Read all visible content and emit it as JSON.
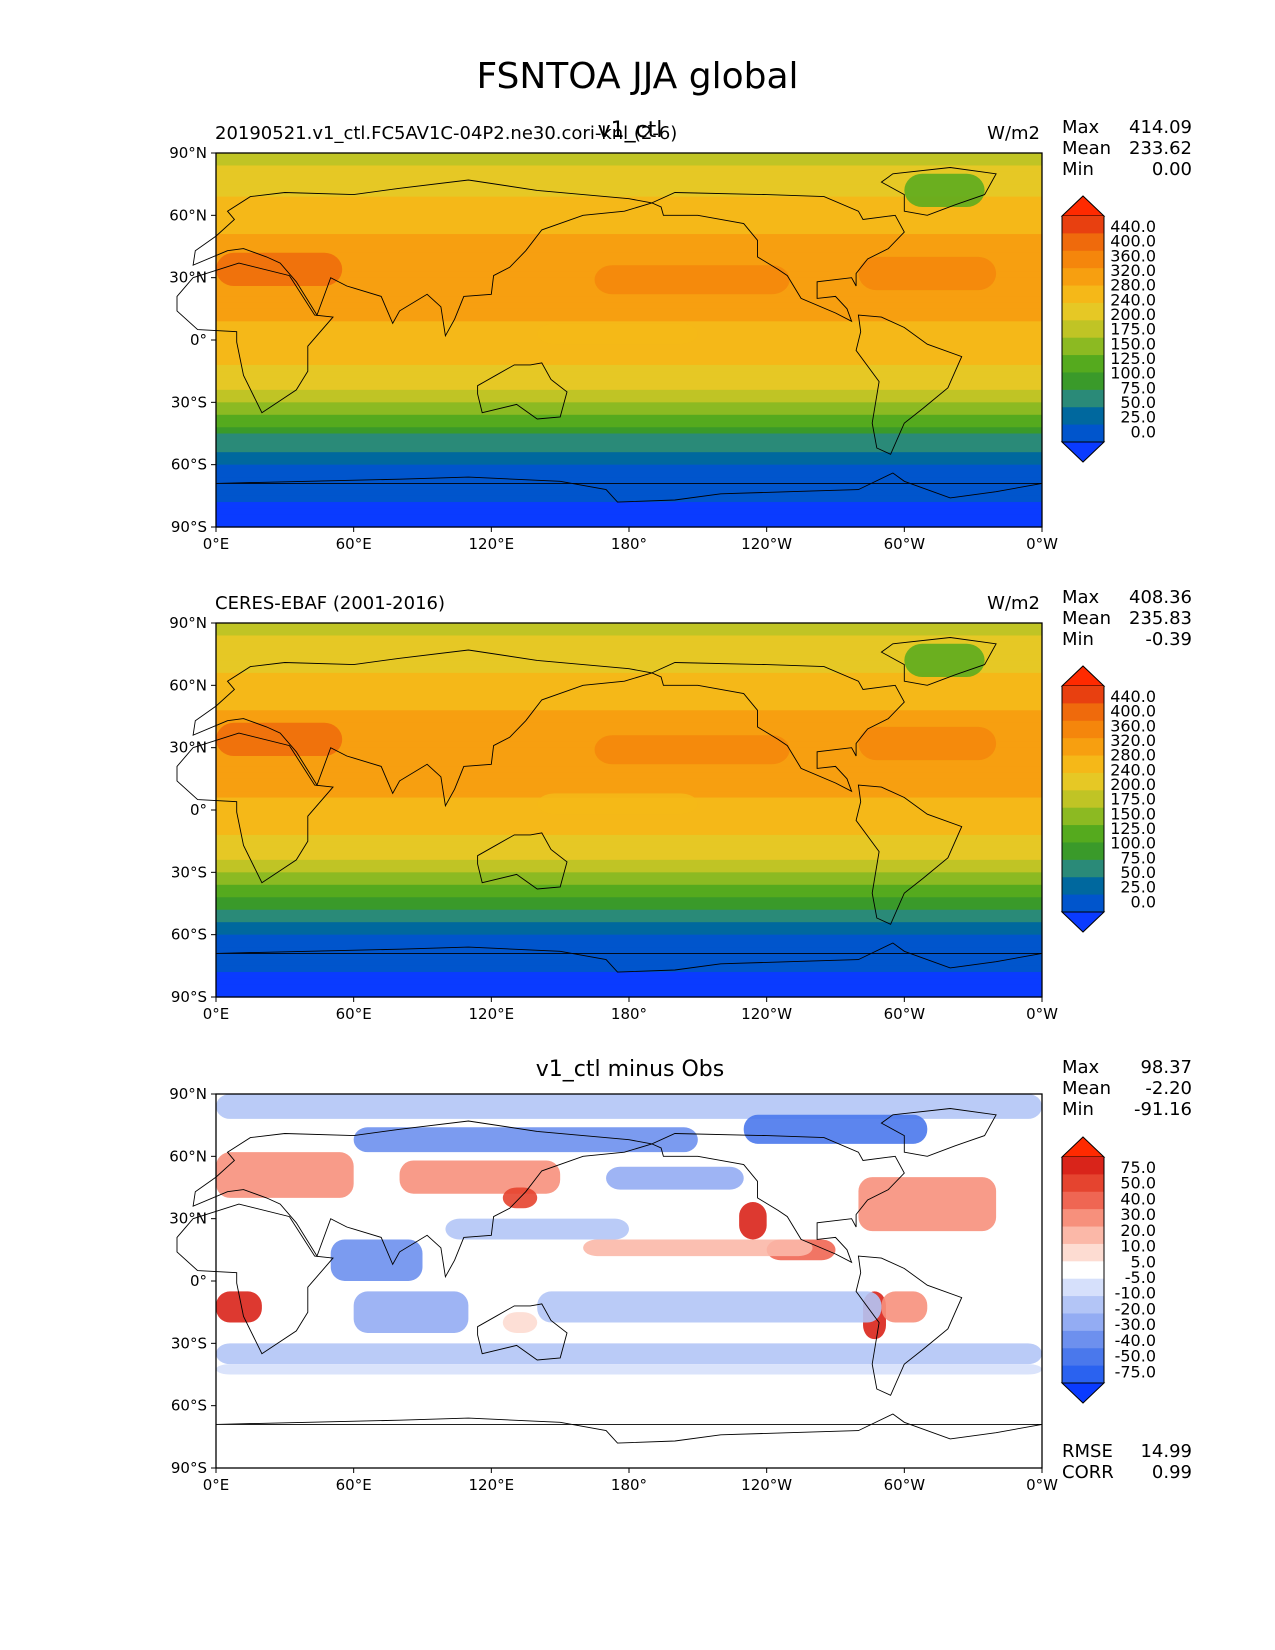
{
  "suptitle": "FSNTOA JJA global",
  "x_ticks": [
    "0°E",
    "60°E",
    "120°E",
    "180°",
    "120°W",
    "60°W",
    "0°W"
  ],
  "y_ticks": [
    "90°N",
    "60°N",
    "30°N",
    "0°",
    "30°S",
    "60°S",
    "90°S"
  ],
  "panels": [
    {
      "left_title": "20190521.v1_ctl.FC5AV1C-04P2.ne30.cori-knl (2-6)",
      "center_title": "v1_ctl",
      "units": "W/m2",
      "stats": [
        {
          "label": "Max",
          "value": "414.09"
        },
        {
          "label": "Mean",
          "value": "233.62"
        },
        {
          "label": "Min",
          "value": "0.00"
        }
      ],
      "colorbar_labels": [
        "440.0",
        "400.0",
        "360.0",
        "320.0",
        "280.0",
        "240.0",
        "200.0",
        "175.0",
        "150.0",
        "125.0",
        "100.0",
        "75.0",
        "50.0",
        "25.0",
        "0.0"
      ]
    },
    {
      "left_title": "CERES-EBAF (2001-2016)",
      "center_title": "",
      "units": "W/m2",
      "stats": [
        {
          "label": "Max",
          "value": "408.36"
        },
        {
          "label": "Mean",
          "value": "235.83"
        },
        {
          "label": "Min",
          "value": "-0.39"
        }
      ],
      "colorbar_labels": [
        "440.0",
        "400.0",
        "360.0",
        "320.0",
        "280.0",
        "240.0",
        "200.0",
        "175.0",
        "150.0",
        "125.0",
        "100.0",
        "75.0",
        "50.0",
        "25.0",
        "0.0"
      ]
    },
    {
      "left_title": "",
      "center_title": "v1_ctl minus Obs",
      "units": "",
      "stats": [
        {
          "label": "Max",
          "value": "98.37"
        },
        {
          "label": "Mean",
          "value": "-2.20"
        },
        {
          "label": "Min",
          "value": "-91.16"
        }
      ],
      "colorbar_labels": [
        "75.0",
        "50.0",
        "40.0",
        "30.0",
        "20.0",
        "10.0",
        "5.0",
        "-5.0",
        "-10.0",
        "-20.0",
        "-30.0",
        "-40.0",
        "-50.0",
        "-75.0"
      ],
      "metrics": [
        {
          "label": "RMSE",
          "value": "14.99"
        },
        {
          "label": "CORR",
          "value": "0.99"
        }
      ]
    }
  ],
  "colors": {
    "field_scale": [
      "#0a3bff",
      "#0055cc",
      "#00689e",
      "#2a8a78",
      "#3a9a2a",
      "#55aa1e",
      "#8cba22",
      "#c0c425",
      "#e6c825",
      "#f5b818",
      "#f79f10",
      "#f5860c",
      "#ef6a0c",
      "#e84010",
      "#ff2a00"
    ],
    "diff_scale": [
      "#0a3bff",
      "#2a62f0",
      "#4a78ec",
      "#6d90ee",
      "#93acf3",
      "#b3c5f6",
      "#d6e0fb",
      "#ffffff",
      "#fddcd2",
      "#fbb8a8",
      "#f7907c",
      "#ef6653",
      "#e5442f",
      "#d9241a",
      "#ff2a00"
    ]
  },
  "chart_data": [
    {
      "type": "heatmap",
      "title": "v1_ctl",
      "subtitle": "20190521.v1_ctl.FC5AV1C-04P2.ne30.cori-knl (2-6)",
      "units": "W/m2",
      "x_ticks": [
        "0°E",
        "60°E",
        "120°E",
        "180°",
        "120°W",
        "60°W",
        "0°W"
      ],
      "y_ticks": [
        "90°N",
        "60°N",
        "30°N",
        "0°",
        "30°S",
        "60°S",
        "90°S"
      ],
      "levels": [
        0,
        25,
        50,
        75,
        100,
        125,
        150,
        175,
        200,
        240,
        280,
        320,
        360,
        400,
        440
      ],
      "zonal_profile": {
        "lat": [
          90,
          75,
          60,
          45,
          30,
          15,
          0,
          -15,
          -30,
          -45,
          -60,
          -75,
          -90
        ],
        "value": [
          185,
          230,
          255,
          300,
          320,
          290,
          265,
          230,
          175,
          105,
          45,
          30,
          10
        ]
      },
      "max": 414.09,
      "mean": 233.62,
      "min": 0.0
    },
    {
      "type": "heatmap",
      "title": "CERES-EBAF (2001-2016)",
      "units": "W/m2",
      "x_ticks": [
        "0°E",
        "60°E",
        "120°E",
        "180°",
        "120°W",
        "60°W",
        "0°W"
      ],
      "y_ticks": [
        "90°N",
        "60°N",
        "30°N",
        "0°",
        "30°S",
        "60°S",
        "90°S"
      ],
      "levels": [
        0,
        25,
        50,
        75,
        100,
        125,
        150,
        175,
        200,
        240,
        280,
        320,
        360,
        400,
        440
      ],
      "zonal_profile": {
        "lat": [
          90,
          75,
          60,
          45,
          30,
          15,
          0,
          -15,
          -30,
          -45,
          -60,
          -75,
          -90
        ],
        "value": [
          180,
          225,
          250,
          290,
          315,
          290,
          270,
          235,
          180,
          110,
          50,
          30,
          10
        ]
      },
      "max": 408.36,
      "mean": 235.83,
      "min": -0.39
    },
    {
      "type": "heatmap",
      "title": "v1_ctl minus Obs",
      "x_ticks": [
        "0°E",
        "60°E",
        "120°E",
        "180°",
        "120°W",
        "60°W",
        "0°W"
      ],
      "y_ticks": [
        "90°N",
        "60°N",
        "30°N",
        "0°",
        "30°S",
        "60°S",
        "90°S"
      ],
      "levels": [
        -75,
        -50,
        -40,
        -30,
        -20,
        -10,
        -5,
        5,
        10,
        20,
        30,
        40,
        50,
        75
      ],
      "max": 98.37,
      "mean": -2.2,
      "min": -91.16,
      "rmse": 14.99,
      "corr": 0.99
    }
  ]
}
